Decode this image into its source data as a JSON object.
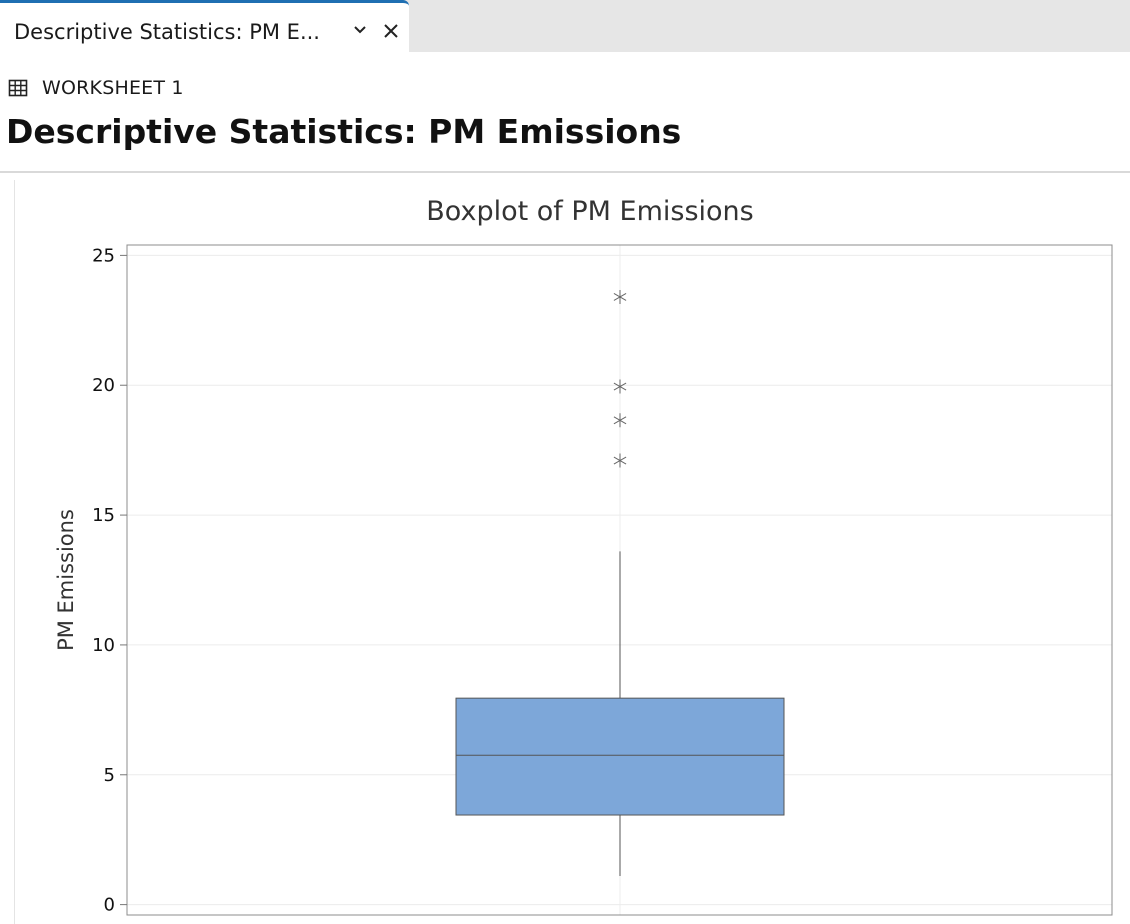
{
  "tab": {
    "label": "Descriptive Statistics: PM E..."
  },
  "worksheet": {
    "label": "WORKSHEET 1",
    "icon": "table-grid-icon"
  },
  "page_title": "Descriptive Statistics: PM Emissions",
  "colors": {
    "accent": "#1f6fb2",
    "box_fill": "#7da7d9",
    "line": "#555555"
  },
  "chart_data": {
    "type": "boxplot",
    "title": "Boxplot of PM Emissions",
    "xlabel": "",
    "ylabel": "PM Emissions",
    "ylim": [
      -0.4,
      25.4
    ],
    "yticks": [
      0,
      5,
      10,
      15,
      20,
      25
    ],
    "grid": true,
    "box": {
      "whisker_low": 1.1,
      "q1": 3.45,
      "median": 5.75,
      "q3": 7.95,
      "whisker_high": 13.6,
      "outliers": [
        17.1,
        18.65,
        19.95,
        23.4
      ]
    }
  }
}
